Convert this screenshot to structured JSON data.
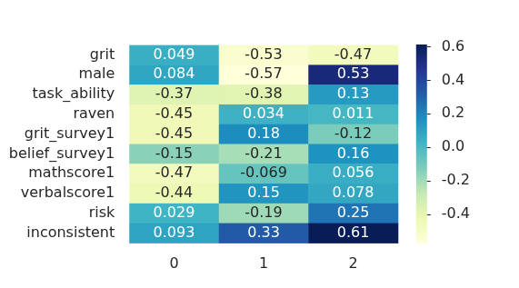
{
  "chart_data": {
    "type": "heatmap",
    "x_categories": [
      "0",
      "1",
      "2"
    ],
    "y_categories": [
      "grit",
      "male",
      "task_ability",
      "raven",
      "grit_survey1",
      "belief_survey1",
      "mathscore1",
      "verbalscore1",
      "risk",
      "inconsistent"
    ],
    "cells": [
      [
        0.049,
        -0.53,
        -0.47
      ],
      [
        0.084,
        -0.57,
        0.53
      ],
      [
        -0.37,
        -0.38,
        0.13
      ],
      [
        -0.45,
        0.034,
        0.011
      ],
      [
        -0.45,
        0.18,
        -0.12
      ],
      [
        -0.15,
        -0.21,
        0.16
      ],
      [
        -0.47,
        -0.069,
        0.056
      ],
      [
        -0.44,
        0.15,
        0.078
      ],
      [
        0.029,
        -0.19,
        0.25
      ],
      [
        0.093,
        0.33,
        0.61
      ]
    ],
    "data_labels": true,
    "colorbar": {
      "range": [
        -0.57,
        0.61
      ],
      "ticks": [
        -0.4,
        -0.2,
        {
          "value": 0,
          "label": "0.0"
        },
        0.2,
        0.4,
        0.6
      ]
    }
  }
}
